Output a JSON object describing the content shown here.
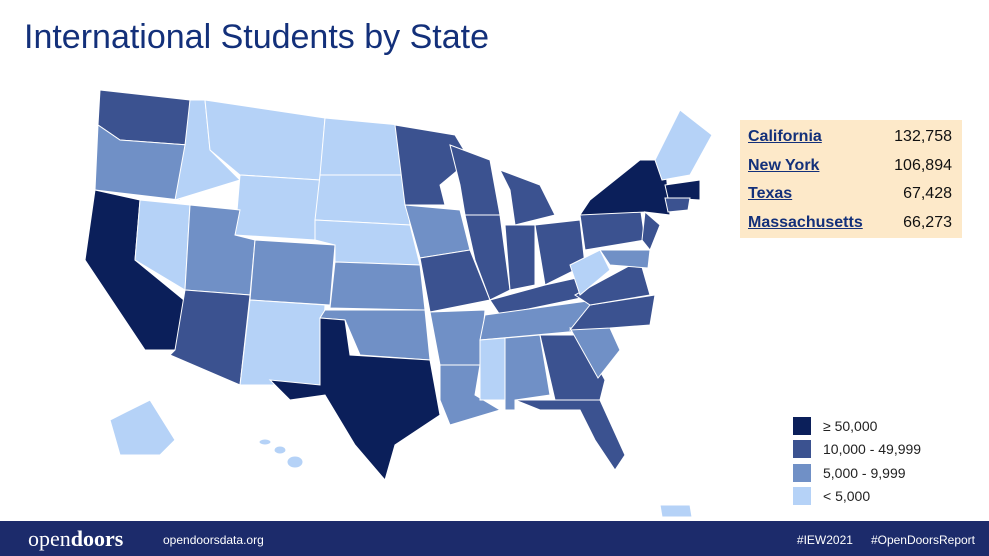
{
  "title": "International Students by State",
  "top_states": [
    {
      "state": "California",
      "count": "132,758"
    },
    {
      "state": "New York",
      "count": "106,894"
    },
    {
      "state": "Texas",
      "count": "67,428"
    },
    {
      "state": "Massachusetts",
      "count": "66,273"
    }
  ],
  "legend": [
    {
      "label": "≥ 50,000",
      "color": "#0b1f5a"
    },
    {
      "label": "10,000 - 49,999",
      "color": "#3b5290"
    },
    {
      "label": "5,000 - 9,999",
      "color": "#7090c6"
    },
    {
      "label": "< 5,000",
      "color": "#b5d2f7"
    }
  ],
  "footer": {
    "brand_light": "open",
    "brand_bold": "doors",
    "website": "opendoorsdata.org",
    "hashtags": [
      "#IEW2021",
      "#OpenDoorsReport"
    ]
  }
}
